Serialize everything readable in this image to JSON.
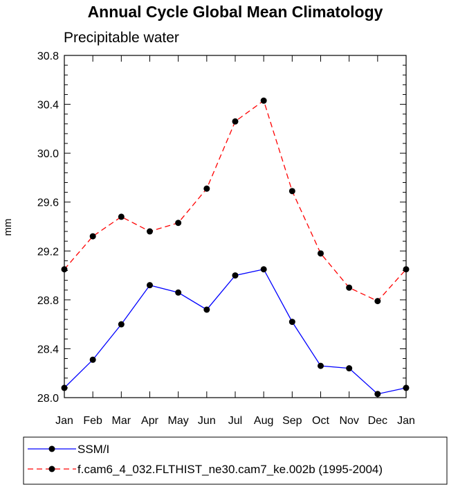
{
  "chart_data": {
    "type": "line",
    "title": "Annual Cycle Global Mean Climatology",
    "subtitle": "Precipitable water",
    "xlabel": "",
    "ylabel": "mm",
    "categories": [
      "Jan",
      "Feb",
      "Mar",
      "Apr",
      "May",
      "Jun",
      "Jul",
      "Aug",
      "Sep",
      "Oct",
      "Nov",
      "Dec",
      "Jan"
    ],
    "ylim": [
      28.0,
      30.8
    ],
    "yticks": [
      "28.0",
      "28.4",
      "28.8",
      "29.2",
      "29.6",
      "30.0",
      "30.4",
      "30.8"
    ],
    "grid": false,
    "legend_position": "bottom",
    "series": [
      {
        "name": "SSM/I",
        "color": "#0000ff",
        "dash": "solid",
        "values": [
          28.08,
          28.31,
          28.6,
          28.92,
          28.86,
          28.72,
          29.0,
          29.05,
          28.62,
          28.26,
          28.24,
          28.03,
          28.08
        ]
      },
      {
        "name": "f.cam6_4_032.FLTHIST_ne30.cam7_ke.002b (1995-2004)",
        "color": "#ff0000",
        "dash": "dashed",
        "values": [
          29.05,
          29.32,
          29.48,
          29.36,
          29.43,
          29.71,
          30.26,
          30.43,
          29.69,
          29.18,
          28.9,
          28.79,
          29.05
        ]
      }
    ]
  }
}
